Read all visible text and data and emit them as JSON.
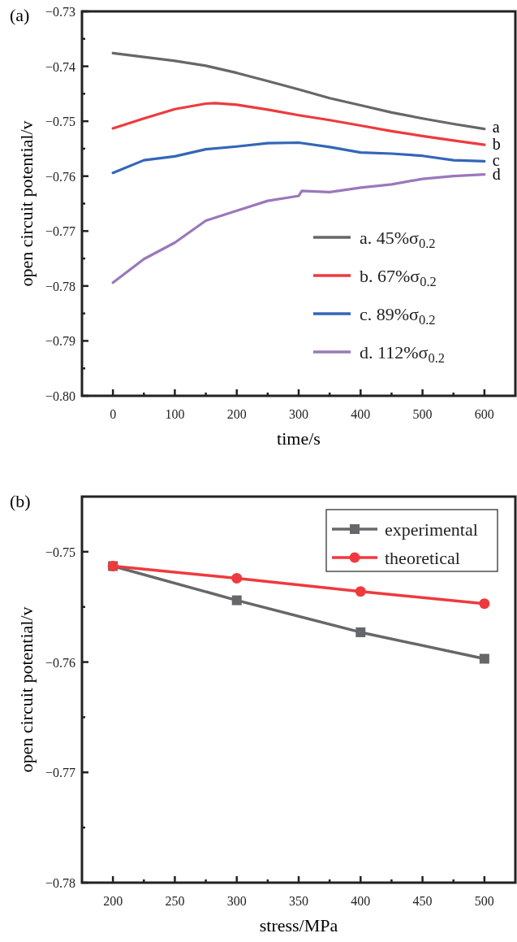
{
  "chart_data": [
    {
      "type": "line",
      "title": "(a)",
      "xlabel": "time/s",
      "ylabel": "open circuit potential/v",
      "xlim": [
        -50,
        650
      ],
      "ylim": [
        -0.8,
        -0.73
      ],
      "xticks": [
        0,
        {
          "value": 50,
          "label": null
        },
        100,
        {
          "value": 150,
          "label": null
        },
        200,
        {
          "value": 250,
          "label": null
        },
        300,
        {
          "value": 350,
          "label": null
        },
        400,
        {
          "value": 450,
          "label": null
        },
        500,
        {
          "value": 550,
          "label": null
        },
        600
      ],
      "yticks": [
        {
          "value": -0.8,
          "label": "−0.80"
        },
        {
          "value": -0.795,
          "label": null
        },
        {
          "value": -0.79,
          "label": "−0.79"
        },
        {
          "value": -0.785,
          "label": null
        },
        {
          "value": -0.78,
          "label": "−0.78"
        },
        {
          "value": -0.775,
          "label": null
        },
        {
          "value": -0.77,
          "label": "−0.77"
        },
        {
          "value": -0.765,
          "label": null
        },
        {
          "value": -0.76,
          "label": "−0.76"
        },
        {
          "value": -0.755,
          "label": null
        },
        {
          "value": -0.75,
          "label": "−0.75"
        },
        {
          "value": -0.745,
          "label": null
        },
        {
          "value": -0.74,
          "label": "−0.74"
        },
        {
          "value": -0.735,
          "label": null
        },
        {
          "value": -0.73,
          "label": "−0.73"
        }
      ],
      "legend": "bottom right",
      "marker": "none",
      "line_style": "solid",
      "grid": false,
      "series": [
        {
          "name": "a. 45%σ$_{0.2}$",
          "color": "#66676b",
          "x": [
            0,
            50,
            100,
            150,
            200,
            250,
            300,
            350,
            400,
            450,
            500,
            550,
            600
          ],
          "values": [
            -0.7376,
            -0.7383,
            -0.739,
            -0.7399,
            -0.7412,
            -0.7427,
            -0.7442,
            -0.7458,
            -0.7471,
            -0.7484,
            -0.7495,
            -0.7505,
            -0.7514
          ]
        },
        {
          "name": "b. 67%σ$_{0.2}$",
          "color": "#ee3a3e",
          "x": [
            0,
            50,
            100,
            150,
            165,
            200,
            250,
            300,
            350,
            400,
            450,
            500,
            550,
            600
          ],
          "values": [
            -0.7513,
            -0.7495,
            -0.7478,
            -0.7468,
            -0.7467,
            -0.747,
            -0.7479,
            -0.7489,
            -0.7498,
            -0.7508,
            -0.7518,
            -0.7527,
            -0.7535,
            -0.7543
          ]
        },
        {
          "name": "c. 89%σ$_{0.2}$",
          "color": "#3366b8",
          "x": [
            0,
            50,
            100,
            150,
            200,
            250,
            300,
            350,
            400,
            450,
            500,
            550,
            600
          ],
          "values": [
            -0.7594,
            -0.7571,
            -0.7564,
            -0.7551,
            -0.7546,
            -0.754,
            -0.7539,
            -0.7547,
            -0.7557,
            -0.7559,
            -0.7563,
            -0.7571,
            -0.7573
          ]
        },
        {
          "name": "d. 112%σ$_{0.2}$",
          "color": "#9a78bb",
          "x": [
            0,
            50,
            100,
            150,
            200,
            250,
            300,
            305,
            350,
            400,
            450,
            500,
            550,
            600
          ],
          "values": [
            -0.7794,
            -0.7751,
            -0.7721,
            -0.7681,
            -0.7663,
            -0.7645,
            -0.7636,
            -0.7627,
            -0.7629,
            -0.7621,
            -0.7615,
            -0.7605,
            -0.76,
            -0.7597
          ]
        }
      ],
      "annotations": [
        "a",
        "b",
        "c",
        "d"
      ]
    },
    {
      "type": "line",
      "title": "(b)",
      "xlabel": "stress/MPa",
      "ylabel": "open circuit potential/v",
      "xlim": [
        175,
        525
      ],
      "ylim": [
        -0.78,
        -0.745
      ],
      "xticks": [
        200,
        {
          "value": 225,
          "label": null
        },
        250,
        {
          "value": 275,
          "label": null
        },
        300,
        {
          "value": 325,
          "label": null
        },
        350,
        {
          "value": 375,
          "label": null
        },
        400,
        {
          "value": 425,
          "label": null
        },
        450,
        {
          "value": 475,
          "label": null
        },
        500
      ],
      "yticks": [
        {
          "value": -0.78,
          "label": "−0.78"
        },
        {
          "value": -0.775,
          "label": null
        },
        {
          "value": -0.77,
          "label": "−0.77"
        },
        {
          "value": -0.765,
          "label": null
        },
        {
          "value": -0.76,
          "label": "−0.76"
        },
        {
          "value": -0.755,
          "label": null
        },
        {
          "value": -0.75,
          "label": "−0.75"
        }
      ],
      "legend": "top right",
      "line_style": "solid",
      "grid": false,
      "series": [
        {
          "name": "experimental",
          "color": "#66676b",
          "marker": "square",
          "x": [
            200,
            300,
            400,
            500
          ],
          "values": [
            -0.7513,
            -0.7544,
            -0.7573,
            -0.7597
          ]
        },
        {
          "name": "theoretical",
          "color": "#ee3a3e",
          "marker": "circle",
          "x": [
            200,
            300,
            400,
            500
          ],
          "values": [
            -0.7513,
            -0.7524,
            -0.7536,
            -0.7547
          ]
        }
      ]
    }
  ]
}
